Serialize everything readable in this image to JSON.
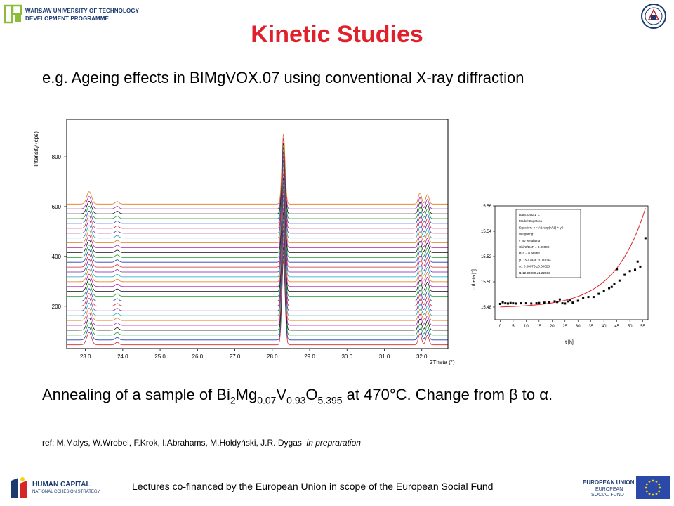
{
  "header": {
    "logo_line1": "WARSAW UNIVERSITY OF TECHNOLOGY",
    "logo_line2": "DEVELOPMENT PROGRAMME",
    "title": "Kinetic Studies",
    "subtitle": "e.g. Ageing effects in BIMgVOX.07 using conventional X-ray diffraction"
  },
  "caption": {
    "part1": "Annealing of a sample of Bi",
    "sub1": "2",
    "part2": "Mg",
    "sub2": "0.07",
    "part3": "V",
    "sub3": "0.93",
    "part4": "O",
    "sub4": "5.395",
    "part5": " at 470°C. Change from β to α."
  },
  "reference": {
    "text": "ref: M.Malys,  W.Wrobel,  F.Krok, I.Abrahams, M.Hołdyński, J.R. Dygas",
    "note": "in prepraration"
  },
  "footer": {
    "hc_title": "HUMAN CAPITAL",
    "hc_sub": "NATIONAL COHESION STRATEGY",
    "text": "Lectures co-financed by the European Union in scope of the European Social Fund",
    "eu_line1": "EUROPEAN UNION",
    "eu_line2": "EUROPEAN",
    "eu_line3": "SOCIAL FUND"
  },
  "colors": {
    "title": "#e0202a",
    "logo_blue": "#1c3a6e",
    "logo_green": "#8dbb3a",
    "eu_blue": "#2a49a8",
    "eu_yellow": "#f5d400",
    "fit_line": "#e0202a"
  },
  "chart_data": [
    {
      "type": "line",
      "title": "",
      "xlabel": "2Theta (°)",
      "ylabel": "Intensity (cps)",
      "xlim": [
        22.5,
        32.7
      ],
      "ylim": [
        30,
        950
      ],
      "xticks": [
        "23.0",
        "24.0",
        "25.0",
        "26.0",
        "27.0",
        "28.0",
        "29.0",
        "30.0",
        "31.0",
        "32.0"
      ],
      "yticks": [
        "200",
        "400",
        "600",
        "800"
      ],
      "n_patterns": 30,
      "baseline_first": 45,
      "baseline_step": 19.5,
      "peaks": [
        {
          "x": 23.1,
          "height": 50
        },
        {
          "x": 23.85,
          "height": 10
        },
        {
          "x": 28.3,
          "height": 340
        },
        {
          "x": 31.95,
          "height": 45
        },
        {
          "x": 32.15,
          "height": 38
        }
      ],
      "series_colors": [
        "#d4272a",
        "#1f3fbf",
        "#1a9a2a",
        "#111111",
        "#b01fb0",
        "#e0781a",
        "#17a6b8",
        "#7a1fa0"
      ]
    },
    {
      "type": "scatter",
      "title": "",
      "xlabel": "t [h]",
      "ylabel": "c theta [°]",
      "xlim": [
        -2,
        57
      ],
      "ylim": [
        15.47,
        15.56
      ],
      "xticks": [
        "0",
        "5",
        "10",
        "15",
        "20",
        "25",
        "30",
        "35",
        "40",
        "45",
        "50",
        "55"
      ],
      "yticks": [
        "15.48",
        "15.50",
        "15.52",
        "15.54",
        "15.56"
      ],
      "fit_box": [
        "Data: Data1_L",
        "Model: ExpGro1",
        "Equation: y = A1*exp(x/t1) + y0",
        "Weighting:",
        "y      No weighting",
        "Chi^2/DoF    = 0.00002",
        "R^2      = 0.96852",
        "y0    15.47936   ±0.00034",
        "A1    0.00075    ±0.00023",
        "t1    12.03089   ±1.22863"
      ],
      "points": [
        [
          0,
          15.4825
        ],
        [
          1,
          15.4838
        ],
        [
          2,
          15.483
        ],
        [
          3,
          15.4828
        ],
        [
          4,
          15.4832
        ],
        [
          5,
          15.483
        ],
        [
          6,
          15.4828
        ],
        [
          8,
          15.483
        ],
        [
          10,
          15.483
        ],
        [
          12,
          15.4828
        ],
        [
          14,
          15.483
        ],
        [
          15,
          15.4832
        ],
        [
          17,
          15.4835
        ],
        [
          19,
          15.4838
        ],
        [
          21,
          15.4845
        ],
        [
          22,
          15.484
        ],
        [
          23,
          15.486
        ],
        [
          24,
          15.483
        ],
        [
          25,
          15.4828
        ],
        [
          26,
          15.4845
        ],
        [
          27,
          15.4852
        ],
        [
          28,
          15.4835
        ],
        [
          30,
          15.485
        ],
        [
          32,
          15.487
        ],
        [
          34,
          15.488
        ],
        [
          36,
          15.488
        ],
        [
          38,
          15.4905
        ],
        [
          40,
          15.4925
        ],
        [
          42,
          15.495
        ],
        [
          43,
          15.496
        ],
        [
          44,
          15.4985
        ],
        [
          45,
          15.51
        ],
        [
          46,
          15.501
        ],
        [
          48,
          15.5055
        ],
        [
          50,
          15.5085
        ],
        [
          52,
          15.5095
        ],
        [
          53,
          15.516
        ],
        [
          54,
          15.512
        ],
        [
          56,
          15.5345
        ]
      ],
      "fit": {
        "model": "y = A1*exp(x/t1) + y0",
        "y0": 15.47936,
        "A1": 0.00075,
        "t1": 12.03089
      }
    }
  ]
}
